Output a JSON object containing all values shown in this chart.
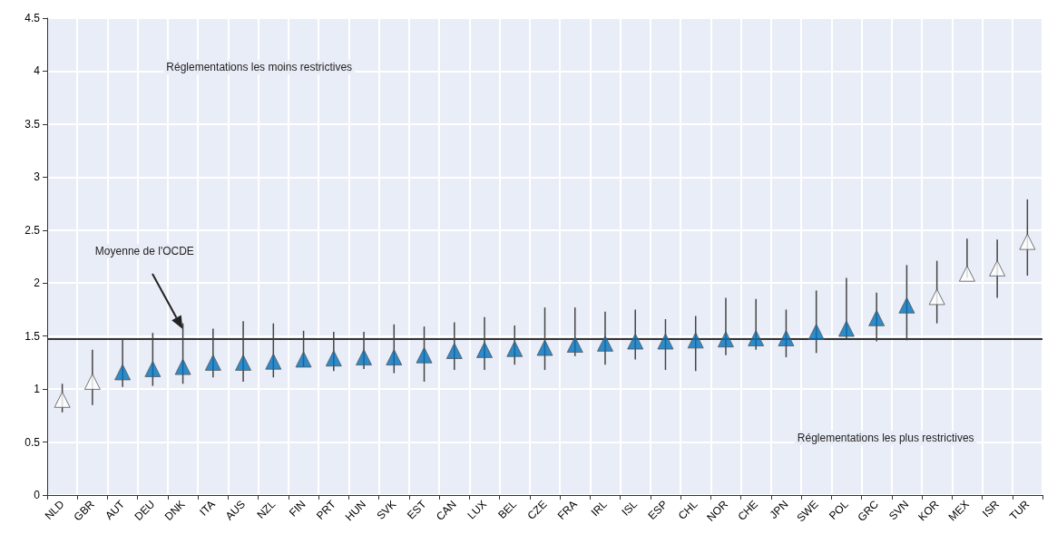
{
  "chart_data": {
    "type": "scatter",
    "categories": [
      "NLD",
      "GBR",
      "AUT",
      "DEU",
      "DNK",
      "ITA",
      "AUS",
      "NZL",
      "FIN",
      "PRT",
      "HUN",
      "SVK",
      "EST",
      "CAN",
      "LUX",
      "BEL",
      "CZE",
      "FRA",
      "IRL",
      "ISL",
      "ESP",
      "CHL",
      "NOR",
      "CHE",
      "JPN",
      "SWE",
      "POL",
      "GRC",
      "SVN",
      "KOR",
      "MEX",
      "ISR",
      "TUR"
    ],
    "values": [
      0.9,
      1.07,
      1.16,
      1.19,
      1.21,
      1.25,
      1.25,
      1.26,
      1.28,
      1.29,
      1.3,
      1.3,
      1.32,
      1.36,
      1.37,
      1.38,
      1.39,
      1.42,
      1.43,
      1.45,
      1.45,
      1.46,
      1.47,
      1.48,
      1.48,
      1.54,
      1.57,
      1.67,
      1.79,
      1.87,
      2.09,
      2.14,
      2.39
    ],
    "errors": [
      [
        0.78,
        1.05
      ],
      [
        0.85,
        1.37
      ],
      [
        1.02,
        1.47
      ],
      [
        1.03,
        1.53
      ],
      [
        1.05,
        1.62
      ],
      [
        1.11,
        1.57
      ],
      [
        1.07,
        1.64
      ],
      [
        1.11,
        1.62
      ],
      [
        1.21,
        1.55
      ],
      [
        1.17,
        1.54
      ],
      [
        1.19,
        1.54
      ],
      [
        1.15,
        1.61
      ],
      [
        1.07,
        1.59
      ],
      [
        1.18,
        1.63
      ],
      [
        1.18,
        1.68
      ],
      [
        1.23,
        1.6
      ],
      [
        1.18,
        1.77
      ],
      [
        1.31,
        1.77
      ],
      [
        1.23,
        1.73
      ],
      [
        1.28,
        1.75
      ],
      [
        1.18,
        1.66
      ],
      [
        1.17,
        1.69
      ],
      [
        1.32,
        1.86
      ],
      [
        1.37,
        1.85
      ],
      [
        1.3,
        1.75
      ],
      [
        1.34,
        1.93
      ],
      [
        1.47,
        2.05
      ],
      [
        1.45,
        1.91
      ],
      [
        1.46,
        2.17
      ],
      [
        1.62,
        2.21
      ],
      [
        2.05,
        2.42
      ],
      [
        1.86,
        2.41
      ],
      [
        2.07,
        2.79
      ]
    ],
    "colors": [
      "#ffffff",
      "#ffffff",
      "#0071bc",
      "#0071bc",
      "#0071bc",
      "#0071bc",
      "#0071bc",
      "#0071bc",
      "#0071bc",
      "#0071bc",
      "#0071bc",
      "#0071bc",
      "#0071bc",
      "#0071bc",
      "#0071bc",
      "#0071bc",
      "#0071bc",
      "#0071bc",
      "#0071bc",
      "#0071bc",
      "#0071bc",
      "#0071bc",
      "#0071bc",
      "#0071bc",
      "#0071bc",
      "#0071bc",
      "#0071bc",
      "#0071bc",
      "#0071bc",
      "#ffffff",
      "#ffffff",
      "#ffffff",
      "#ffffff"
    ],
    "marker": "triangle",
    "ylim": [
      0,
      4.5
    ],
    "yticks": [
      0,
      0.5,
      1,
      1.5,
      2,
      2.5,
      3,
      3.5,
      4,
      4.5
    ],
    "grid": true,
    "ref_lines": [
      {
        "axis": "y",
        "value": 1.47,
        "label": "Moyenne de l'OCDE",
        "color": "#333333"
      }
    ],
    "annotations": [
      "Réglementations les moins restrictives",
      "Réglementations les plus restrictives"
    ]
  }
}
